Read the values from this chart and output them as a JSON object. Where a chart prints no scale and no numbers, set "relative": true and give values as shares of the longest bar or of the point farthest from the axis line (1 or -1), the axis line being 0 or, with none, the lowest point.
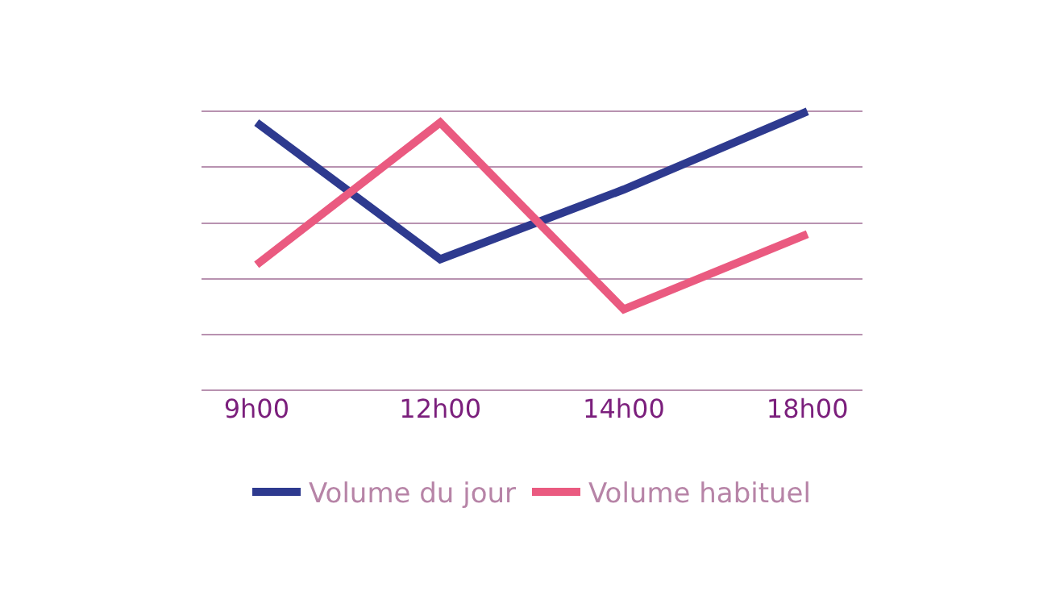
{
  "chart_data": {
    "type": "line",
    "relative": true,
    "categories": [
      "9h00",
      "12h00",
      "14h00",
      "18h00"
    ],
    "series": [
      {
        "name": "Volume du jour",
        "color": "#2e3a8f",
        "values": [
          0.96,
          0.47,
          0.72,
          1
        ]
      },
      {
        "name": "Volume habituel",
        "color": "#ea5a80",
        "values": [
          0.45,
          0.96,
          0.29,
          0.56
        ]
      }
    ],
    "grid": "y",
    "legend": "bottom",
    "marker": "none",
    "line_style": "solid"
  }
}
